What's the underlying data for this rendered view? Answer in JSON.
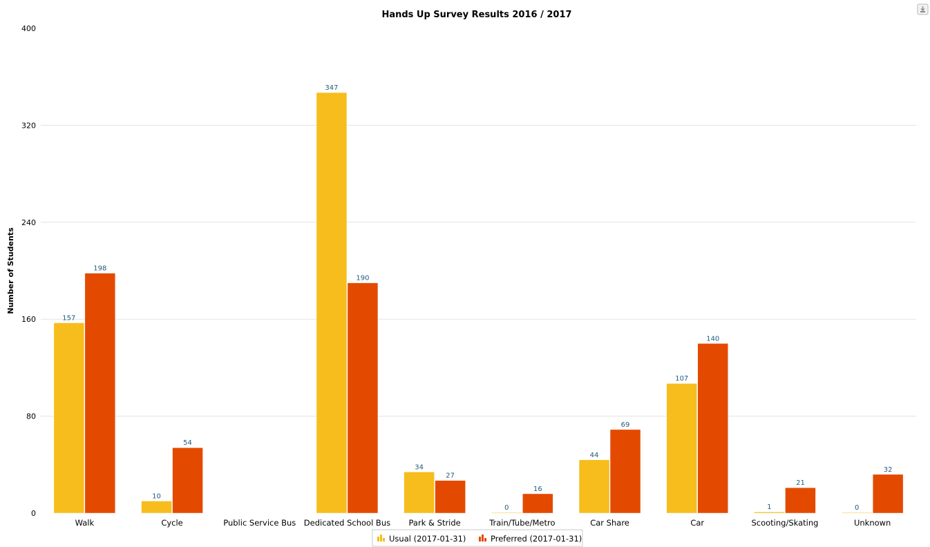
{
  "chart_data": {
    "type": "bar",
    "title": "Hands Up Survey Results 2016 / 2017",
    "ylabel": "Number of Students",
    "xlabel": "",
    "ylim": [
      0,
      400
    ],
    "yticks": [
      0,
      80,
      160,
      240,
      320,
      400
    ],
    "grid": true,
    "legend_position": "bottom-center",
    "categories": [
      "Walk",
      "Cycle",
      "Public Service Bus",
      "Dedicated School Bus",
      "Park & Stride",
      "Train/Tube/Metro",
      "Car Share",
      "Car",
      "Scooting/Skating",
      "Unknown"
    ],
    "series": [
      {
        "name": "Usual (2017-01-31)",
        "color": "#f7bd1c",
        "values": [
          157,
          10,
          null,
          347,
          34,
          0,
          44,
          107,
          1,
          0
        ]
      },
      {
        "name": "Preferred (2017-01-31)",
        "color": "#e34a00",
        "values": [
          198,
          54,
          null,
          190,
          27,
          16,
          69,
          140,
          21,
          32
        ]
      }
    ]
  },
  "icons": {
    "export": "download-icon"
  }
}
